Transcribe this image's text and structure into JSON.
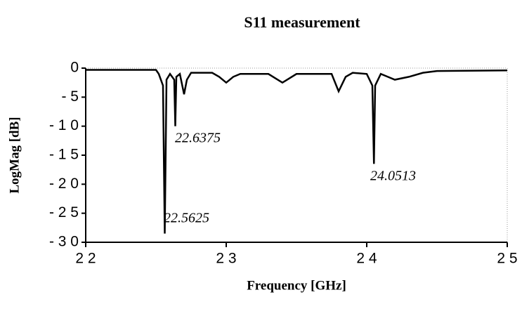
{
  "chart_data": {
    "type": "line",
    "title": "S11 measurement",
    "xlabel": "Frequency  [GHz]",
    "ylabel": "LogMag [dB]",
    "x": [
      22.0,
      22.5,
      22.52,
      22.55,
      22.5625,
      22.575,
      22.6,
      22.63,
      22.6375,
      22.645,
      22.67,
      22.7,
      22.72,
      22.75,
      22.9,
      22.95,
      23.0,
      23.05,
      23.1,
      23.3,
      23.4,
      23.5,
      23.75,
      23.8,
      23.85,
      23.9,
      24.0,
      24.04,
      24.0513,
      24.06,
      24.1,
      24.15,
      24.2,
      24.3,
      24.4,
      24.5,
      25.0
    ],
    "series": [
      {
        "name": "S11",
        "color": "#000000",
        "values": [
          -0.3,
          -0.3,
          -1,
          -3,
          -28.5,
          -2,
          -1,
          -2,
          -10,
          -1.5,
          -1,
          -4.5,
          -2,
          -0.8,
          -0.8,
          -1.5,
          -2.5,
          -1.5,
          -1,
          -1,
          -2.5,
          -1,
          -1,
          -4,
          -1.5,
          -0.8,
          -1,
          -3,
          -16.5,
          -3,
          -1,
          -1.5,
          -2,
          -1.5,
          -0.8,
          -0.5,
          -0.4
        ]
      }
    ],
    "xlim": [
      22,
      25
    ],
    "xticks": [
      {
        "value": 22,
        "label": "2 2"
      },
      {
        "value": 23,
        "label": "2 3"
      },
      {
        "value": 24,
        "label": "2 4"
      },
      {
        "value": 25,
        "label": "2 5"
      }
    ],
    "ylim": [
      -30,
      0
    ],
    "yticks": [
      0,
      {
        "value": -5,
        "label": "- 5"
      },
      {
        "value": -10,
        "label": "- 1 0"
      },
      {
        "value": -15,
        "label": "- 1 5"
      },
      {
        "value": -20,
        "label": "- 2 0"
      },
      {
        "value": -25,
        "label": "- 2 5"
      },
      {
        "value": -30,
        "label": "- 3 0"
      }
    ],
    "annotations": [
      "22.5625",
      "22.6375",
      "24.0513"
    ]
  }
}
